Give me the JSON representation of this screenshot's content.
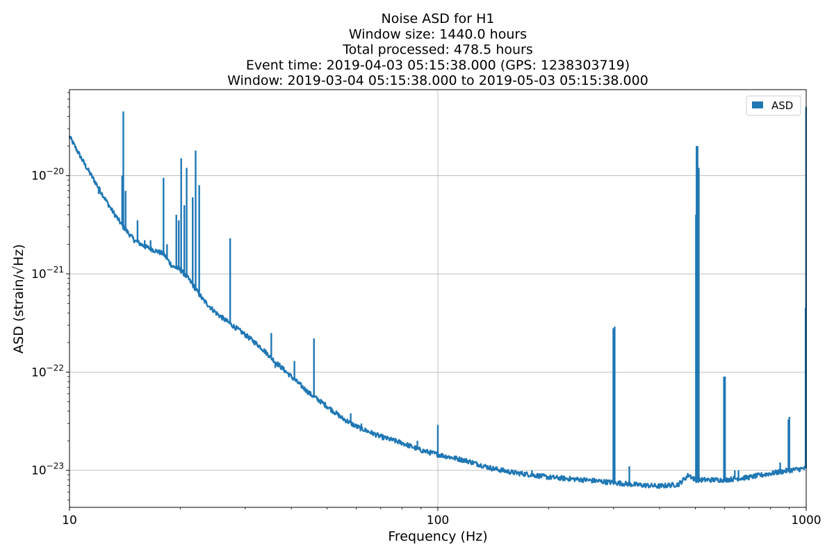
{
  "chart_data": {
    "type": "line",
    "title_lines": [
      "Noise ASD for H1",
      "Window size: 1440.0 hours",
      "Total processed: 478.5 hours",
      "Event time: 2019-04-03 05:15:38.000 (GPS: 1238303719)",
      "Window: 2019-03-04 05:15:38.000 to 2019-05-03 05:15:38.000"
    ],
    "xlabel": "Frequency (Hz)",
    "ylabel": "ASD (strain/√Hz)",
    "xscale": "log",
    "yscale": "log",
    "xlim": [
      10,
      1000
    ],
    "ylim": [
      4.2e-24,
      7.5e-20
    ],
    "grid": true,
    "legend_placement": "top-right",
    "x_ticks": [
      {
        "value": 10,
        "label": "10"
      },
      {
        "value": 100,
        "label": "100"
      },
      {
        "value": 1000,
        "label": "1000"
      }
    ],
    "y_ticks": [
      {
        "value": 1e-20,
        "mantissa": "10",
        "exponent": "−20"
      },
      {
        "value": 1e-21,
        "mantissa": "10",
        "exponent": "−21"
      },
      {
        "value": 1e-22,
        "mantissa": "10",
        "exponent": "−22"
      },
      {
        "value": 1e-23,
        "mantissa": "10",
        "exponent": "−23"
      }
    ],
    "series": [
      {
        "name": "ASD",
        "color": "#1f77b4",
        "baseline": [
          [
            10,
            2.5e-20
          ],
          [
            11,
            1.3e-20
          ],
          [
            12,
            7.5e-21
          ],
          [
            13,
            4.5e-21
          ],
          [
            14,
            3e-21
          ],
          [
            15,
            2.2e-21
          ],
          [
            16,
            1.9e-21
          ],
          [
            18,
            1.6e-21
          ],
          [
            19,
            1.2e-21
          ],
          [
            20,
            1.1e-21
          ],
          [
            21,
            9e-22
          ],
          [
            22,
            7e-22
          ],
          [
            23,
            5.5e-22
          ],
          [
            25,
            4e-22
          ],
          [
            27,
            3.2e-22
          ],
          [
            30,
            2.4e-22
          ],
          [
            33,
            1.8e-22
          ],
          [
            36,
            1.3e-22
          ],
          [
            40,
            9e-23
          ],
          [
            45,
            6e-23
          ],
          [
            50,
            4.5e-23
          ],
          [
            55,
            3.4e-23
          ],
          [
            60,
            2.8e-23
          ],
          [
            70,
            2.2e-23
          ],
          [
            80,
            1.9e-23
          ],
          [
            90,
            1.6e-23
          ],
          [
            100,
            1.45e-23
          ],
          [
            120,
            1.25e-23
          ],
          [
            140,
            1.05e-23
          ],
          [
            160,
            9.5e-24
          ],
          [
            180,
            9e-24
          ],
          [
            200,
            8.5e-24
          ],
          [
            250,
            8e-24
          ],
          [
            300,
            7.5e-24
          ],
          [
            350,
            7.1e-24
          ],
          [
            400,
            6.9e-24
          ],
          [
            450,
            7.2e-24
          ],
          [
            480,
            9e-24
          ],
          [
            500,
            8e-24
          ],
          [
            600,
            8e-24
          ],
          [
            700,
            8.5e-24
          ],
          [
            800,
            9.3e-24
          ],
          [
            900,
            1e-23
          ],
          [
            1000,
            1.05e-23
          ]
        ],
        "spikes": [
          [
            12,
            6.5e-21
          ],
          [
            13.9,
            1e-20
          ],
          [
            14.0,
            4.5e-20
          ],
          [
            14.2,
            7e-21
          ],
          [
            15.3,
            3.5e-21
          ],
          [
            16.0,
            2.2e-21
          ],
          [
            16.6,
            2.2e-21
          ],
          [
            18.0,
            9.5e-21
          ],
          [
            18.4,
            2e-21
          ],
          [
            19.5,
            4e-21
          ],
          [
            19.8,
            3.5e-21
          ],
          [
            20.1,
            1.5e-20
          ],
          [
            20.5,
            5e-21
          ],
          [
            20.8,
            1.2e-20
          ],
          [
            21.6,
            6e-21
          ],
          [
            22.0,
            1.8e-20
          ],
          [
            22.5,
            8e-21
          ],
          [
            27.3,
            2.3e-21
          ],
          [
            35.3,
            2.5e-22
          ],
          [
            36.2,
            1.1e-22
          ],
          [
            40.8,
            1.3e-22
          ],
          [
            46.1,
            2.2e-22
          ],
          [
            58.0,
            3.8e-23
          ],
          [
            62.0,
            3e-23
          ],
          [
            88.0,
            2e-23
          ],
          [
            100.0,
            2.9e-23
          ],
          [
            180.0,
            1e-23
          ],
          [
            299.5,
            2.8e-22
          ],
          [
            302.0,
            2.9e-22
          ],
          [
            331.0,
            1.1e-23
          ],
          [
            502.0,
            4e-21
          ],
          [
            504.0,
            2e-20
          ],
          [
            507.0,
            2e-20
          ],
          [
            511.0,
            1.2e-20
          ],
          [
            598.0,
            9e-23
          ],
          [
            602.0,
            9e-23
          ],
          [
            640.0,
            1e-23
          ],
          [
            655.0,
            1e-23
          ],
          [
            850.0,
            1.2e-23
          ],
          [
            895.0,
            3.3e-23
          ],
          [
            900.0,
            3.5e-23
          ],
          [
            996.0,
            4.5e-22
          ],
          [
            999.0,
            5e-20
          ]
        ]
      }
    ]
  }
}
